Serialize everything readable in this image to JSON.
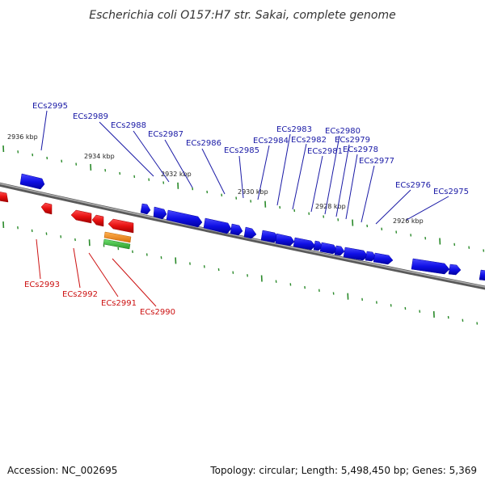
{
  "title": "Escherichia coli O157:H7 str. Sakai, complete genome",
  "footer": {
    "accession": "Accession: NC_002695",
    "summary": "Topology: circular; Length: 5,498,450 bp; Genes: 5,369"
  },
  "colors": {
    "forward_gene": "#1f1fe6",
    "reverse_gene": "#e61a1a",
    "forward_label": "#1a1aa6",
    "reverse_label": "#cc1111",
    "backbone": "#8a8a8a",
    "tick": "#2a8a2a",
    "extra_features": [
      "#f08c1e",
      "#3cb43c"
    ]
  },
  "kbp_labels": [
    "2936 kbp",
    "2934 kbp",
    "2932 kbp",
    "2930 kbp",
    "2928 kbp",
    "2926 kbp"
  ],
  "forward_labels": [
    "ECs2995",
    "ECs2989",
    "ECs2988",
    "ECs2987",
    "ECs2986",
    "ECs2985",
    "ECs2984",
    "ECs2983",
    "ECs2982",
    "ECs2981",
    "ECs2980",
    "ECs2979",
    "ECs2978",
    "ECs2977",
    "ECs2976",
    "ECs2975"
  ],
  "reverse_labels": [
    "ECs2993",
    "ECs2992",
    "ECs2991",
    "ECs2990"
  ]
}
